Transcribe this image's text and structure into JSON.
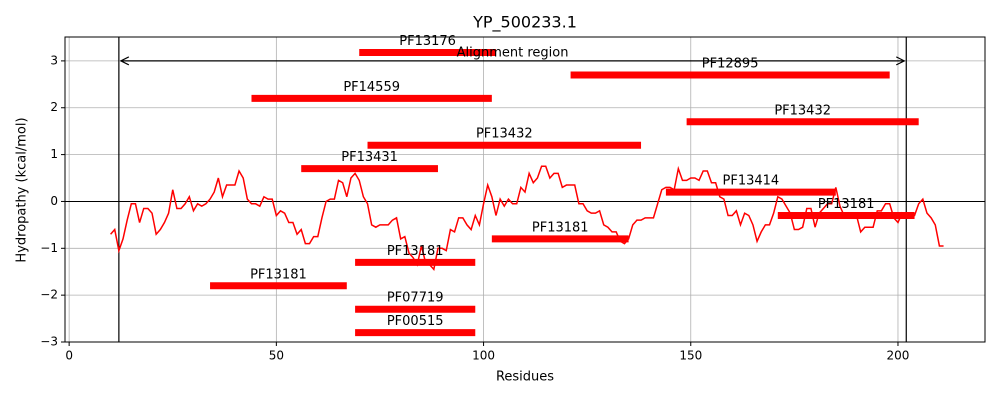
{
  "chart_data": {
    "type": "line",
    "title": "YP_500233.1",
    "xlabel": "Residues",
    "ylabel": "Hydropathy (kcal/mol)",
    "color": "#ff0000",
    "x": [
      10,
      11,
      12,
      13,
      14,
      15,
      16,
      17,
      18,
      19,
      20,
      21,
      22,
      23,
      24,
      25,
      26,
      27,
      28,
      29,
      30,
      31,
      32,
      33,
      34,
      35,
      36,
      37,
      38,
      39,
      40,
      41,
      42,
      43,
      44,
      45,
      46,
      47,
      48,
      49,
      50,
      51,
      52,
      53,
      54,
      55,
      56,
      57,
      58,
      59,
      60,
      61,
      62,
      63,
      64,
      65,
      66,
      67,
      68,
      69,
      70,
      71,
      72,
      73,
      74,
      75,
      76,
      77,
      78,
      79,
      80,
      81,
      82,
      83,
      84,
      85,
      86,
      87,
      88,
      89,
      90,
      91,
      92,
      93,
      94,
      95,
      96,
      97,
      98,
      99,
      100,
      101,
      102,
      103,
      104,
      105,
      106,
      107,
      108,
      109,
      110,
      111,
      112,
      113,
      114,
      115,
      116,
      117,
      118,
      119,
      120,
      121,
      122,
      123,
      124,
      125,
      126,
      127,
      128,
      129,
      130,
      131,
      132,
      133,
      134,
      135,
      136,
      137,
      138,
      139,
      140,
      141,
      142,
      143,
      144,
      145,
      146,
      147,
      148,
      149,
      150,
      151,
      152,
      153,
      154,
      155,
      156,
      157,
      158,
      159,
      160,
      161,
      162,
      163,
      164,
      165,
      166,
      167,
      168,
      169,
      170,
      171,
      172,
      173,
      174,
      175,
      176,
      177,
      178,
      179,
      180,
      181,
      182,
      183,
      184,
      185,
      186,
      187,
      188,
      189,
      190,
      191,
      192,
      193,
      194,
      195,
      196,
      197,
      198,
      199,
      200,
      201,
      202,
      203,
      204,
      205,
      206,
      207,
      208,
      209,
      210,
      211
    ],
    "values": [
      -0.7,
      -0.6,
      -1.05,
      -0.8,
      -0.4,
      -0.05,
      -0.05,
      -0.45,
      -0.15,
      -0.15,
      -0.25,
      -0.7,
      -0.6,
      -0.45,
      -0.25,
      0.25,
      -0.15,
      -0.15,
      -0.05,
      0.1,
      -0.2,
      -0.05,
      -0.1,
      -0.05,
      0.05,
      0.2,
      0.5,
      0.1,
      0.35,
      0.35,
      0.35,
      0.65,
      0.5,
      0.05,
      -0.05,
      -0.05,
      -0.1,
      0.1,
      0.05,
      0.05,
      -0.3,
      -0.2,
      -0.25,
      -0.45,
      -0.45,
      -0.7,
      -0.6,
      -0.9,
      -0.9,
      -0.75,
      -0.75,
      -0.35,
      0.0,
      0.05,
      0.05,
      0.45,
      0.4,
      0.1,
      0.5,
      0.6,
      0.45,
      0.1,
      -0.05,
      -0.5,
      -0.55,
      -0.5,
      -0.5,
      -0.5,
      -0.4,
      -0.35,
      -0.8,
      -0.75,
      -1.1,
      -1.2,
      -1.35,
      -0.95,
      -1.3,
      -1.35,
      -1.45,
      -1.0,
      -1.0,
      -1.05,
      -0.6,
      -0.65,
      -0.35,
      -0.35,
      -0.5,
      -0.6,
      -0.3,
      -0.5,
      -0.05,
      0.35,
      0.1,
      -0.3,
      0.05,
      -0.1,
      0.05,
      -0.05,
      -0.05,
      0.3,
      0.2,
      0.6,
      0.4,
      0.5,
      0.75,
      0.75,
      0.5,
      0.6,
      0.6,
      0.3,
      0.35,
      0.35,
      0.35,
      -0.05,
      -0.05,
      -0.2,
      -0.25,
      -0.25,
      -0.2,
      -0.5,
      -0.55,
      -0.65,
      -0.65,
      -0.85,
      -0.9,
      -0.8,
      -0.5,
      -0.4,
      -0.4,
      -0.35,
      -0.35,
      -0.35,
      -0.05,
      0.25,
      0.3,
      0.3,
      0.25,
      0.7,
      0.45,
      0.45,
      0.5,
      0.5,
      0.45,
      0.65,
      0.65,
      0.4,
      0.4,
      0.1,
      0.05,
      -0.3,
      -0.3,
      -0.2,
      -0.5,
      -0.25,
      -0.3,
      -0.5,
      -0.85,
      -0.65,
      -0.5,
      -0.5,
      -0.25,
      0.1,
      0.05,
      -0.1,
      -0.25,
      -0.6,
      -0.6,
      -0.55,
      -0.15,
      -0.15,
      -0.55,
      -0.25,
      -0.15,
      -0.05,
      -0.05,
      0.3,
      -0.1,
      -0.3,
      -0.35,
      -0.25,
      -0.3,
      -0.65,
      -0.55,
      -0.55,
      -0.55,
      -0.2,
      -0.2,
      -0.05,
      -0.05,
      -0.35,
      -0.45,
      -0.25,
      -0.35,
      -0.3,
      -0.3,
      -0.05,
      0.05,
      -0.25,
      -0.35,
      -0.5,
      -0.95,
      -0.95
    ],
    "domains": [
      {
        "label": "PF13176",
        "start": 70,
        "end": 103,
        "y": 3.18
      },
      {
        "label": "PF12895",
        "start": 121,
        "end": 198,
        "y": 2.7
      },
      {
        "label": "PF14559",
        "start": 44,
        "end": 102,
        "y": 2.2
      },
      {
        "label": "PF13432",
        "start": 149,
        "end": 205,
        "y": 1.7
      },
      {
        "label": "PF13432",
        "start": 72,
        "end": 138,
        "y": 1.2
      },
      {
        "label": "PF13431",
        "start": 56,
        "end": 89,
        "y": 0.7
      },
      {
        "label": "PF13414",
        "start": 144,
        "end": 185,
        "y": 0.2
      },
      {
        "label": "PF13181",
        "start": 171,
        "end": 204,
        "y": -0.3
      },
      {
        "label": "PF13181",
        "start": 102,
        "end": 135,
        "y": -0.8
      },
      {
        "label": "PF13181",
        "start": 69,
        "end": 98,
        "y": -1.3
      },
      {
        "label": "PF13181",
        "start": 34,
        "end": 67,
        "y": -1.8
      },
      {
        "label": "PF07719",
        "start": 69,
        "end": 98,
        "y": -2.3
      },
      {
        "label": "PF00515",
        "start": 69,
        "end": 98,
        "y": -2.8
      }
    ],
    "alignment": {
      "text": "Alignment region",
      "start": 12,
      "end": 202,
      "y": 3
    },
    "hline": 0,
    "xlim": [
      -1,
      221
    ],
    "ylim": [
      -3,
      3.51
    ],
    "xticks": [
      0,
      50,
      100,
      150,
      200
    ],
    "yticks": [
      {
        "value": -3,
        "label": "−3"
      },
      {
        "value": -2,
        "label": "−2"
      },
      {
        "value": -1,
        "label": "−1"
      },
      0,
      1,
      2,
      3
    ],
    "grid": true
  }
}
